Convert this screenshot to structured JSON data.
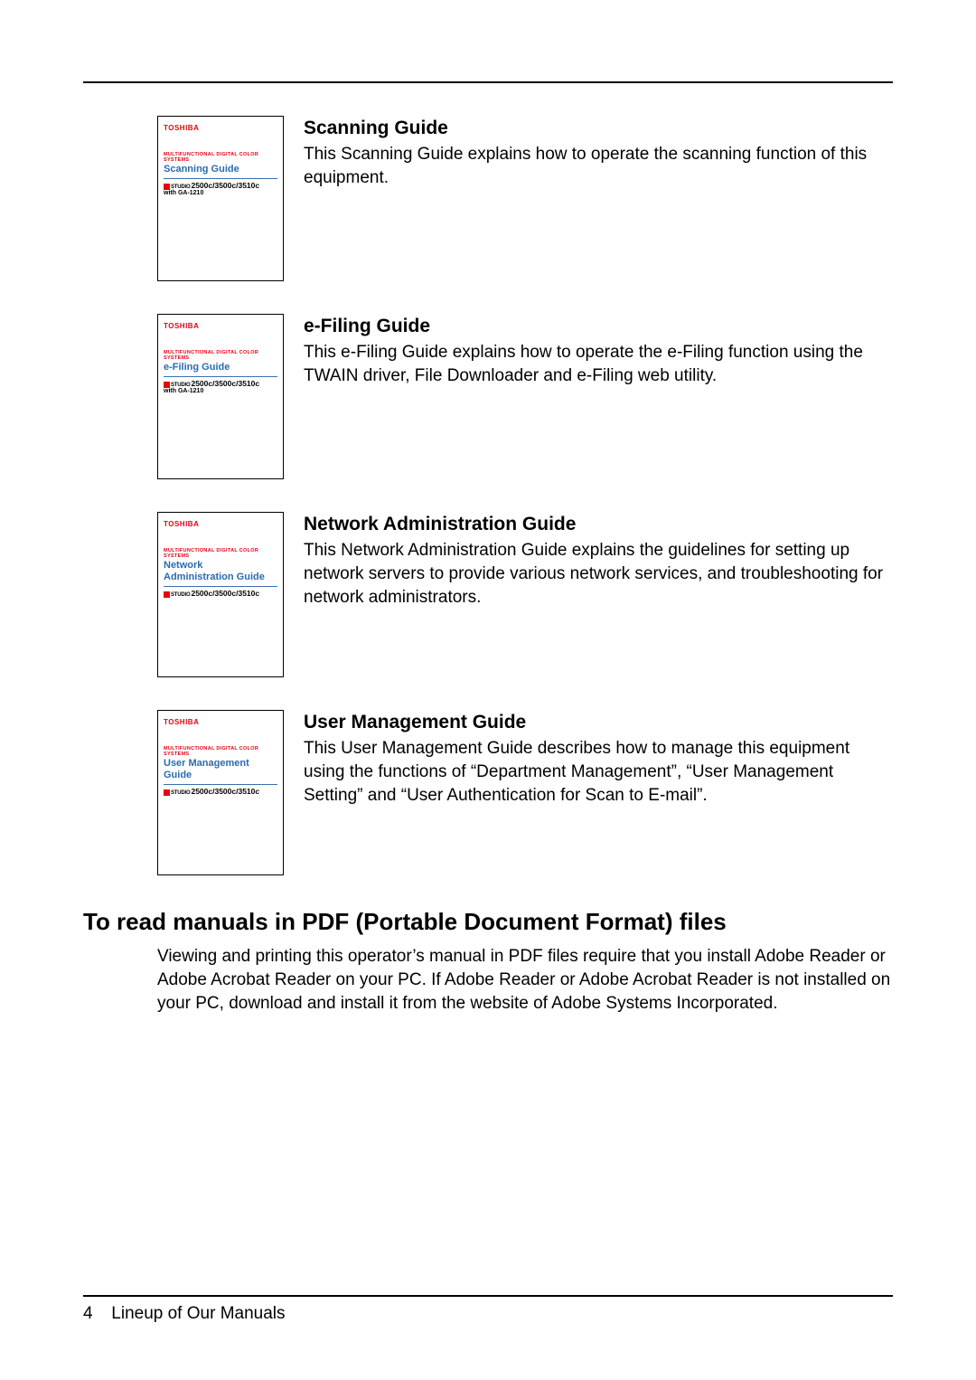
{
  "colors": {
    "brand_red": "#e60012",
    "title_blue": "#2a6bb0",
    "rule_blue": "#3a6fb0",
    "text": "#000000",
    "bg": "#ffffff"
  },
  "covers": {
    "brand": "TOSHIBA",
    "subtitle": "MULTIFUNCTIONAL DIGITAL COLOR SYSTEMS",
    "studio_prefix": "e",
    "studio_word": "STUDIO",
    "model_a": "2500c/3500c/3510c",
    "with_ga": "with GA-1210"
  },
  "guides": [
    {
      "cover_title": "Scanning Guide",
      "cover_title_multiline": [
        "Scanning Guide"
      ],
      "show_with_ga": true,
      "heading": "Scanning Guide",
      "desc": "This Scanning Guide explains how to operate the scanning function of this equipment."
    },
    {
      "cover_title": "e-Filing Guide",
      "cover_title_multiline": [
        "e-Filing Guide"
      ],
      "show_with_ga": true,
      "heading": "e-Filing Guide",
      "desc": "This e-Filing Guide explains how to operate the e-Filing function using the TWAIN driver, File Downloader and e-Filing web utility."
    },
    {
      "cover_title": "Network Administration Guide",
      "cover_title_multiline": [
        "Network",
        "Administration Guide"
      ],
      "show_with_ga": false,
      "heading": "Network Administration Guide",
      "desc": "This Network Administration Guide explains the guidelines for setting up network servers to provide various network services, and troubleshooting for network administrators."
    },
    {
      "cover_title": "User Management Guide",
      "cover_title_multiline": [
        "User Management",
        "Guide"
      ],
      "show_with_ga": false,
      "heading": "User Management Guide",
      "desc": "This User Management Guide describes how to manage this equipment using the functions of “Department Management”, “User Management Setting” and “User Authentication for Scan to E-mail”."
    }
  ],
  "pdf_section": {
    "heading": "To read manuals in PDF (Portable Document Format) files",
    "body": "Viewing and printing this operator’s manual in PDF files require that you install Adobe Reader or Adobe Acrobat Reader on your PC. If Adobe Reader or Adobe Acrobat Reader is not installed on your PC, download and install it from the website of Adobe Systems Incorporated."
  },
  "footer": {
    "page_number": "4",
    "label": "Lineup of Our Manuals"
  }
}
